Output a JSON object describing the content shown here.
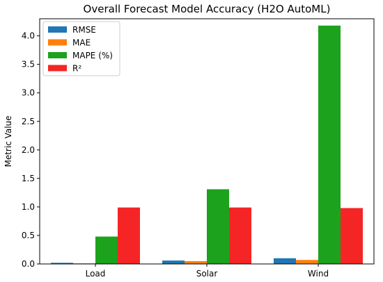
{
  "chart_data": {
    "type": "bar",
    "title": "Overall Forecast Model Accuracy (H2O AutoML)",
    "xlabel": "",
    "ylabel": "Metric Value",
    "categories": [
      "Load",
      "Solar",
      "Wind"
    ],
    "ylim": [
      0,
      4.3
    ],
    "yticks": [
      0.0,
      0.5,
      1.0,
      1.5,
      2.0,
      2.5,
      3.0,
      3.5,
      4.0
    ],
    "ytick_labels": [
      "0.0",
      "0.5",
      "1.0",
      "1.5",
      "2.0",
      "2.5",
      "3.0",
      "3.5",
      "4.0"
    ],
    "grid": false,
    "legend_position": "top-left",
    "series": [
      {
        "name": "RMSE",
        "color": "#1f77b4",
        "values": [
          0.02,
          0.06,
          0.1
        ]
      },
      {
        "name": "MAE",
        "color": "#ff7f0e",
        "values": [
          0.01,
          0.05,
          0.07
        ]
      },
      {
        "name": "MAPE (%)",
        "color": "#1ca21c",
        "values": [
          0.48,
          1.31,
          4.18
        ]
      },
      {
        "name": "R²",
        "color": "#f52525",
        "values": [
          0.99,
          0.99,
          0.98
        ]
      }
    ]
  }
}
